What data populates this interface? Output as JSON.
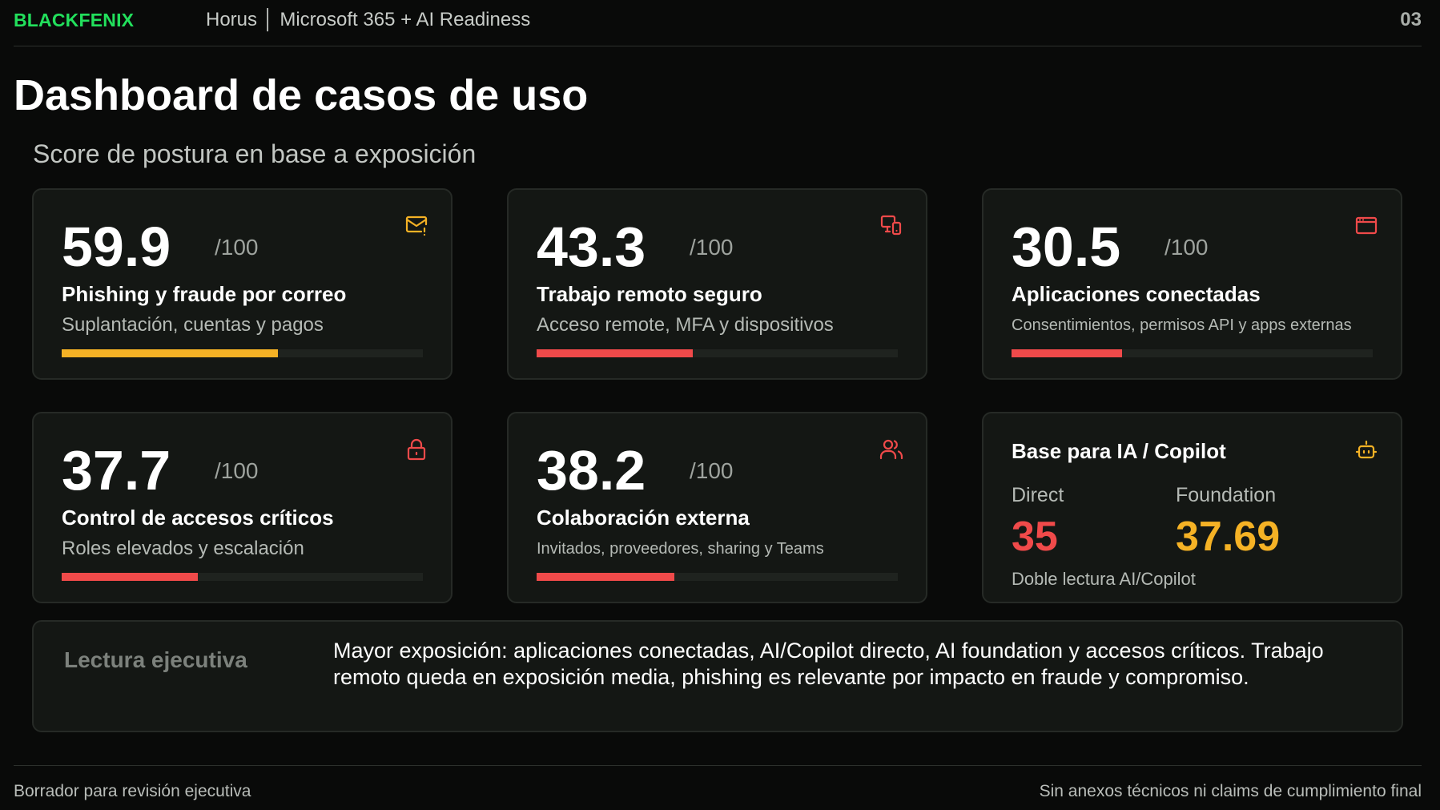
{
  "header": {
    "brand": "BLACKFENIX",
    "doc_title": "Horus │ Microsoft 365 + AI Readiness",
    "page_number": "03"
  },
  "page_title": "Dashboard de casos de uso",
  "subtitle": "Score de postura en base a exposición",
  "colors": {
    "brand_green": "#22e05c",
    "warning_amber": "#f5b225",
    "critical_red": "#f04a4a"
  },
  "cards": [
    {
      "score": "59.9",
      "out_of": "/100",
      "title": "Phishing y fraude por correo",
      "desc": "Suplantación, cuentas y pagos",
      "icon": "mail-alert-icon",
      "progress": 0.599,
      "color": "#f5b225"
    },
    {
      "score": "43.3",
      "out_of": "/100",
      "title": "Trabajo remoto seguro",
      "desc": "Acceso remote, MFA y dispositivos",
      "icon": "devices-icon",
      "progress": 0.433,
      "color": "#f04a4a"
    },
    {
      "score": "30.5",
      "out_of": "/100",
      "title": "Aplicaciones conectadas",
      "desc": "Consentimientos, permisos API y apps externas",
      "icon": "app-window-icon",
      "progress": 0.305,
      "color": "#f04a4a"
    },
    {
      "score": "37.7",
      "out_of": "/100",
      "title": "Control de accesos críticos",
      "desc": "Roles elevados y escalación",
      "icon": "lock-icon",
      "progress": 0.377,
      "color": "#f04a4a"
    },
    {
      "score": "38.2",
      "out_of": "/100",
      "title": "Colaboración externa",
      "desc": "Invitados, proveedores, sharing y Teams",
      "icon": "users-icon",
      "progress": 0.382,
      "color": "#f04a4a"
    }
  ],
  "ai_card": {
    "title": "Base para IA / Copilot",
    "icon": "robot-icon",
    "direct_label": "Direct",
    "direct_value": "35",
    "foundation_label": "Foundation",
    "foundation_value": "37.69",
    "note": "Doble lectura AI/Copilot"
  },
  "executive": {
    "label": "Lectura ejecutiva",
    "text": "Mayor exposición: aplicaciones conectadas, AI/Copilot directo, AI foundation y accesos críticos. Trabajo remoto queda en exposición media, phishing es relevante por impacto en fraude y compromiso."
  },
  "footer": {
    "left": "Borrador para revisión ejecutiva",
    "right": "Sin anexos técnicos ni claims de cumplimiento final"
  }
}
